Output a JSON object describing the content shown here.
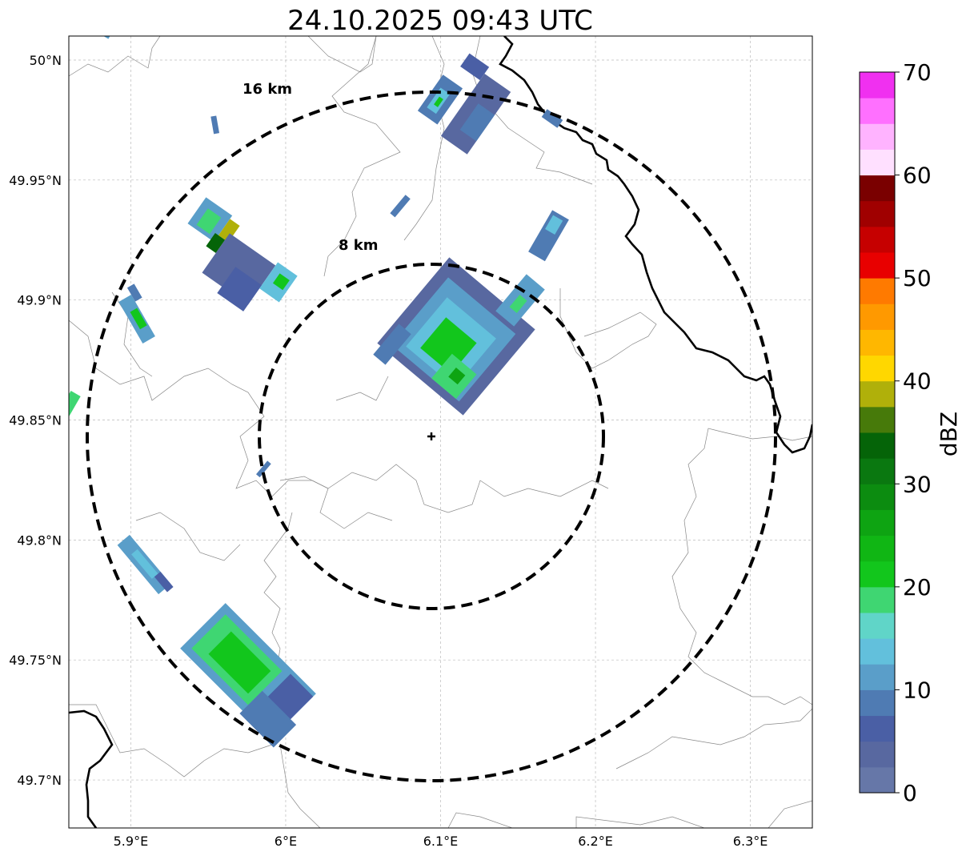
{
  "title": "24.10.2025 09:43 UTC",
  "map": {
    "lon_range": [
      5.86,
      6.34
    ],
    "lat_range": [
      49.68,
      50.01
    ],
    "center": {
      "lon": 6.095,
      "lat": 49.843
    },
    "lat_ticks": [
      {
        "value": 50.0,
        "label": "50°N"
      },
      {
        "value": 49.95,
        "label": "49.95°N"
      },
      {
        "value": 49.9,
        "label": "49.9°N"
      },
      {
        "value": 49.85,
        "label": "49.85°N"
      },
      {
        "value": 49.8,
        "label": "49.8°N"
      },
      {
        "value": 49.75,
        "label": "49.75°N"
      },
      {
        "value": 49.7,
        "label": "49.7°N"
      }
    ],
    "lon_ticks": [
      {
        "value": 5.9,
        "label": "5.9°E"
      },
      {
        "value": 6.0,
        "label": "6°E"
      },
      {
        "value": 6.1,
        "label": "6.1°E"
      },
      {
        "value": 6.2,
        "label": "6.2°E"
      },
      {
        "value": 6.3,
        "label": "6.3°E"
      }
    ],
    "rings": [
      {
        "radius_km": 8,
        "label": "8 km"
      },
      {
        "radius_km": 16,
        "label": "16 km"
      }
    ]
  },
  "colorbar": {
    "title": "dBZ",
    "min": 0,
    "max": 70,
    "tick_labels": [
      "0",
      "10",
      "20",
      "30",
      "40",
      "50",
      "60",
      "70"
    ],
    "colors": [
      "#6677a8",
      "#5868a0",
      "#4a5fa5",
      "#4f7bb3",
      "#5a9ec9",
      "#62c0dc",
      "#60d5c8",
      "#3fd672",
      "#12c61c",
      "#10b614",
      "#0ea412",
      "#0c8c10",
      "#0a7810",
      "#056408",
      "#477a0a",
      "#b0b00a",
      "#ffd700",
      "#ffb700",
      "#ff9900",
      "#ff7a00",
      "#e80000",
      "#c60000",
      "#a00000",
      "#7a0000",
      "#ffe0ff",
      "#ffb3ff",
      "#ff70ff",
      "#f030f0"
    ]
  }
}
